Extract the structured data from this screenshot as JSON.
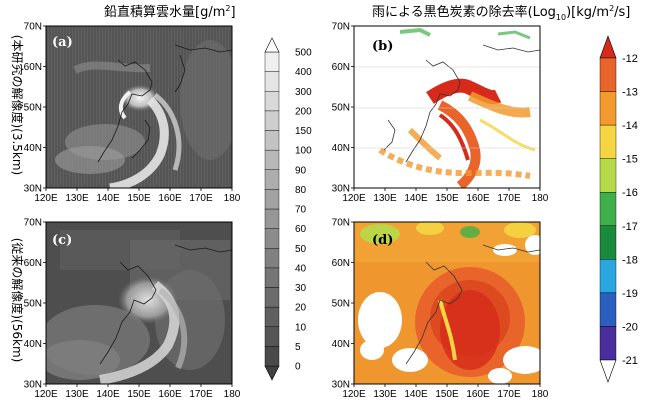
{
  "left_title": "鉛直積算雲水量[g/m",
  "left_title_sup": "2",
  "left_title_end": "]",
  "right_title": "雨による黒色炭素の除去率(Log",
  "right_title_sub": "10",
  "right_title_mid": ")[kg/m",
  "right_title_sup": "2",
  "right_title_end": "/s]",
  "row_labels": [
    "(本研究の解像度)(3.5km)",
    "(従来の解像度)(56km)"
  ],
  "panels": [
    {
      "tag": "(a)",
      "kind": "cloud-water",
      "resolution": "3.5km"
    },
    {
      "tag": "(b)",
      "kind": "bc-wet-removal",
      "resolution": "3.5km"
    },
    {
      "tag": "(c)",
      "kind": "cloud-water",
      "resolution": "56km"
    },
    {
      "tag": "(d)",
      "kind": "bc-wet-removal",
      "resolution": "56km"
    }
  ],
  "chart_data": [
    {
      "type": "heatmap",
      "title": "鉛直積算雲水量[g/m2]",
      "x_ticks": [
        "120E",
        "130E",
        "140E",
        "150E",
        "160E",
        "170E",
        "180"
      ],
      "y_ticks": [
        "30N",
        "40N",
        "50N",
        "60N",
        "70N"
      ],
      "xlim": [
        120,
        180
      ],
      "ylim": [
        30,
        70
      ],
      "colorbar": {
        "labels": [
          "0",
          "5",
          "10",
          "20",
          "30",
          "40",
          "50",
          "60",
          "70",
          "80",
          "90",
          "100",
          "150",
          "200",
          "300",
          "400",
          "500"
        ],
        "colors": [
          "#404040",
          "#4a4a4a",
          "#555555",
          "#606060",
          "#6b6b6b",
          "#767676",
          "#818181",
          "#8c8c8c",
          "#979797",
          "#a2a2a2",
          "#adadad",
          "#b8b8b8",
          "#c3c3c3",
          "#cecece",
          "#d9d9d9",
          "#e4e4e4",
          "#efefef",
          "#ffffff"
        ],
        "orientation": "vertical"
      }
    },
    {
      "type": "heatmap",
      "title": "雨による黒色炭素の除去率(Log10)[kg/m2/s]",
      "x_ticks": [
        "120E",
        "130E",
        "140E",
        "150E",
        "160E",
        "170E",
        "180"
      ],
      "y_ticks": [
        "30N",
        "40N",
        "50N",
        "60N",
        "70N"
      ],
      "xlim": [
        120,
        180
      ],
      "ylim": [
        30,
        70
      ],
      "colorbar": {
        "labels": [
          "-12",
          "-13",
          "-14",
          "-15",
          "-16",
          "-17",
          "-18",
          "-19",
          "-20",
          "-21"
        ],
        "colors": [
          "#d62a1a",
          "#e8642a",
          "#f29a2e",
          "#f5d542",
          "#b6d94a",
          "#3fb049",
          "#1a8a3c",
          "#2aa6e0",
          "#2c5fbf",
          "#4a2d9c",
          "#ffffff"
        ],
        "orientation": "vertical"
      }
    }
  ]
}
